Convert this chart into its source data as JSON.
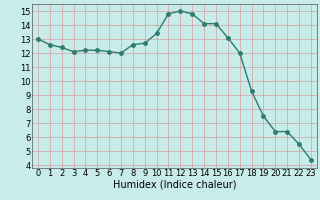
{
  "x": [
    0,
    1,
    2,
    3,
    4,
    5,
    6,
    7,
    8,
    9,
    10,
    11,
    12,
    13,
    14,
    15,
    16,
    17,
    18,
    19,
    20,
    21,
    22,
    23
  ],
  "y": [
    13.0,
    12.6,
    12.4,
    12.1,
    12.2,
    12.2,
    12.1,
    12.0,
    12.6,
    12.7,
    13.4,
    14.8,
    15.0,
    14.8,
    14.1,
    14.1,
    13.1,
    12.0,
    9.3,
    7.5,
    6.4,
    6.4,
    5.5,
    4.4
  ],
  "line_color": "#2e7d6e",
  "marker": "o",
  "marker_size": 2.5,
  "linewidth": 1.0,
  "xlabel": "Humidex (Indice chaleur)",
  "xlim": [
    -0.5,
    23.5
  ],
  "ylim": [
    3.8,
    15.5
  ],
  "yticks": [
    4,
    5,
    6,
    7,
    8,
    9,
    10,
    11,
    12,
    13,
    14,
    15
  ],
  "xticks": [
    0,
    1,
    2,
    3,
    4,
    5,
    6,
    7,
    8,
    9,
    10,
    11,
    12,
    13,
    14,
    15,
    16,
    17,
    18,
    19,
    20,
    21,
    22,
    23
  ],
  "bg_color": "#c8ecea",
  "grid_color": "#d4a0a0",
  "axis_fontsize": 7,
  "tick_fontsize": 6
}
